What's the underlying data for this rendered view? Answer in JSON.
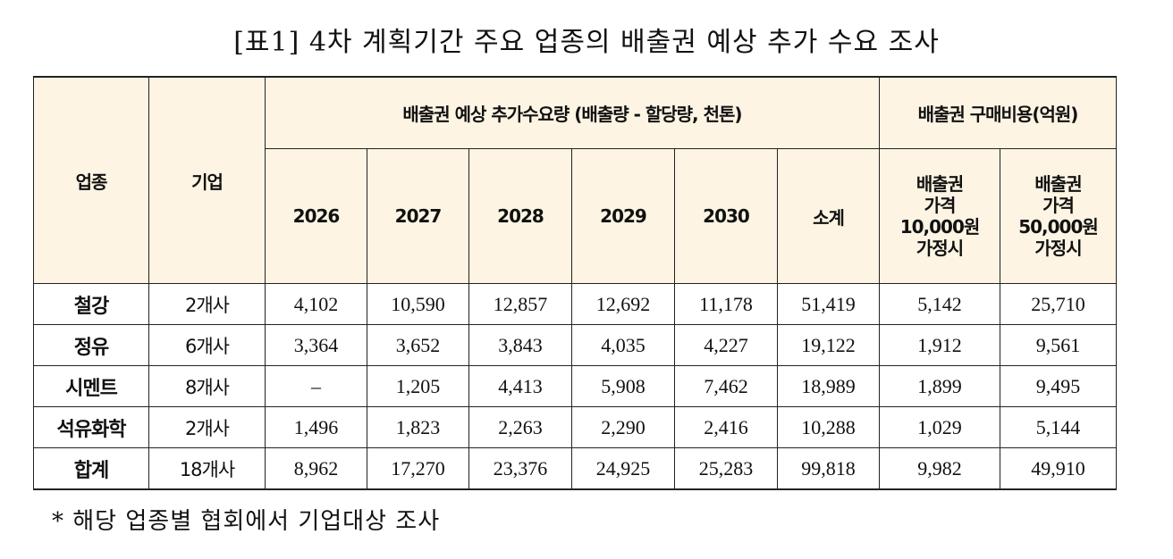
{
  "title": "[표1] 4차 계획기간 주요 업종의 배출권 예상 추가 수요 조사",
  "table": {
    "col_industry": "업종",
    "col_company": "기업",
    "group_demand": "배출권 예상 추가수요량 (배출량 - 할당량, 천톤)",
    "group_cost": "배출권 구매비용(억원)",
    "years": [
      "2026",
      "2027",
      "2028",
      "2029",
      "2030",
      "소계"
    ],
    "cost_cols": [
      [
        "배출권",
        "가격",
        "10,000원",
        "가정시"
      ],
      [
        "배출권",
        "가격",
        "50,000원",
        "가정시"
      ]
    ],
    "rows": [
      {
        "industry": "철강",
        "companies": "2개사",
        "values": [
          "4,102",
          "10,590",
          "12,857",
          "12,692",
          "11,178",
          "51,419",
          "5,142",
          "25,710"
        ]
      },
      {
        "industry": "정유",
        "companies": "6개사",
        "values": [
          "3,364",
          "3,652",
          "3,843",
          "4,035",
          "4,227",
          "19,122",
          "1,912",
          "9,561"
        ]
      },
      {
        "industry": "시멘트",
        "companies": "8개사",
        "values": [
          "–",
          "1,205",
          "4,413",
          "5,908",
          "7,462",
          "18,989",
          "1,899",
          "9,495"
        ]
      },
      {
        "industry": "석유화학",
        "companies": "2개사",
        "values": [
          "1,496",
          "1,823",
          "2,263",
          "2,290",
          "2,416",
          "10,288",
          "1,029",
          "5,144"
        ]
      },
      {
        "industry": "합계",
        "companies": "18개사",
        "values": [
          "8,962",
          "17,270",
          "23,376",
          "24,925",
          "25,283",
          "99,818",
          "9,982",
          "49,910"
        ]
      }
    ]
  },
  "note": "* 해당 업종별 협회에서 기업대상 조사",
  "colors": {
    "header_bg": "#fdf4e3",
    "border": "#222222"
  }
}
